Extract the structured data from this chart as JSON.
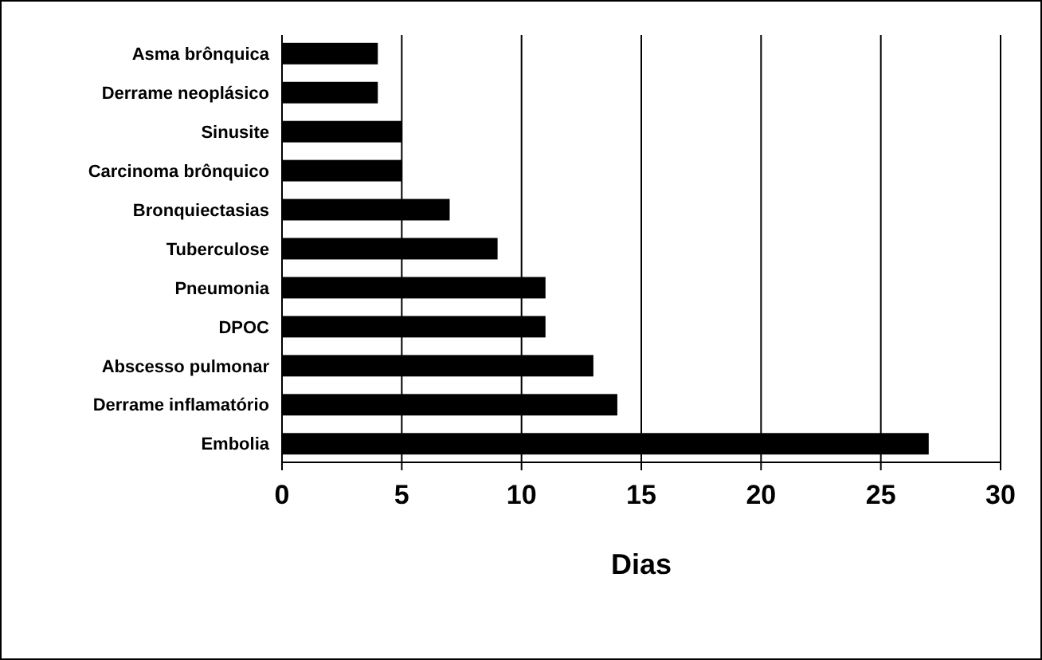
{
  "chart_data": {
    "type": "bar",
    "orientation": "horizontal",
    "xlabel": "Dias",
    "categories": [
      "Asma brônquica",
      "Derrame neoplásico",
      "Sinusite",
      "Carcinoma brônquico",
      "Bronquiectasias",
      "Tuberculose",
      "Pneumonia",
      "DPOC",
      "Abscesso pulmonar",
      "Derrame inflamatório",
      "Embolia"
    ],
    "values": [
      4,
      4,
      5,
      5,
      7,
      9,
      11,
      11,
      13,
      14,
      27
    ],
    "color": "#000000",
    "xlim": [
      0,
      30
    ],
    "xticks": [
      0,
      5,
      10,
      15,
      20,
      25,
      30
    ],
    "grid": "x"
  }
}
